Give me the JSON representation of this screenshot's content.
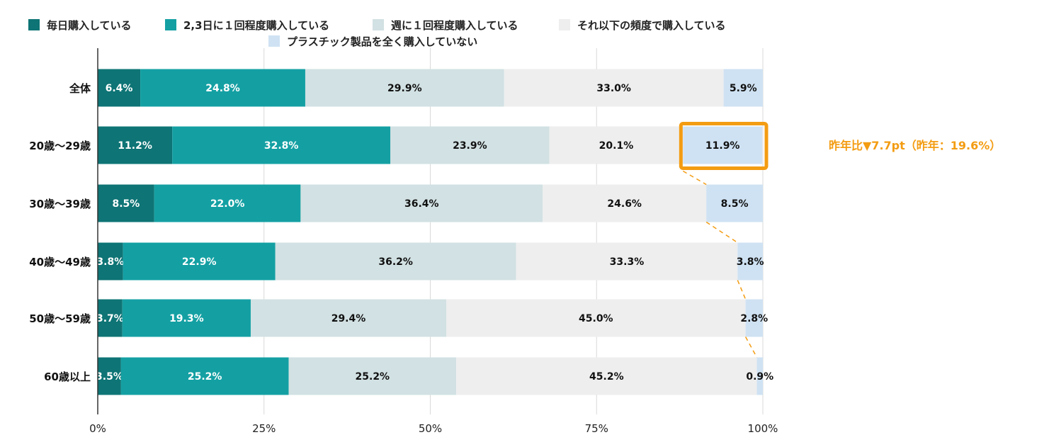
{
  "chart_data": {
    "type": "bar",
    "orientation": "horizontal",
    "stacked": true,
    "categories": [
      "全体",
      "20歳～29歳",
      "30歳～39歳",
      "40歳～49歳",
      "50歳～59歳",
      "60歳以上"
    ],
    "series": [
      {
        "name": "毎日購入している",
        "color": "#0e7475",
        "label_color": "#ffffff",
        "values": [
          6.4,
          11.2,
          8.5,
          3.8,
          3.7,
          3.5
        ]
      },
      {
        "name": "2,3日に１回程度購入している",
        "color": "#14a0a3",
        "label_color": "#ffffff",
        "values": [
          24.8,
          32.8,
          22.0,
          22.9,
          19.3,
          25.2
        ]
      },
      {
        "name": "週に１回程度購入している",
        "color": "#d2e1e3",
        "label_color": "#111111",
        "values": [
          29.9,
          23.9,
          36.4,
          36.2,
          29.4,
          25.2
        ]
      },
      {
        "name": "それ以下の頻度で購入している",
        "color": "#eeeeee",
        "label_color": "#111111",
        "values": [
          33.0,
          20.1,
          24.6,
          33.3,
          45.0,
          45.2
        ]
      },
      {
        "name": "プラスチック製品を全く購入していない",
        "color": "#cfe2f3",
        "label_color": "#111111",
        "values": [
          5.9,
          11.9,
          8.5,
          3.8,
          2.8,
          0.9
        ]
      }
    ],
    "xlim": [
      0,
      100
    ],
    "xticks": [
      "0%",
      "25%",
      "50%",
      "75%",
      "100%"
    ],
    "legend_position": "top-center",
    "highlight": {
      "category": "20歳～29歳",
      "series": "プラスチック製品を全く購入していない",
      "color": "#f39c12"
    },
    "annotation": "昨年比▼7.7pt（昨年：19.6%）"
  }
}
